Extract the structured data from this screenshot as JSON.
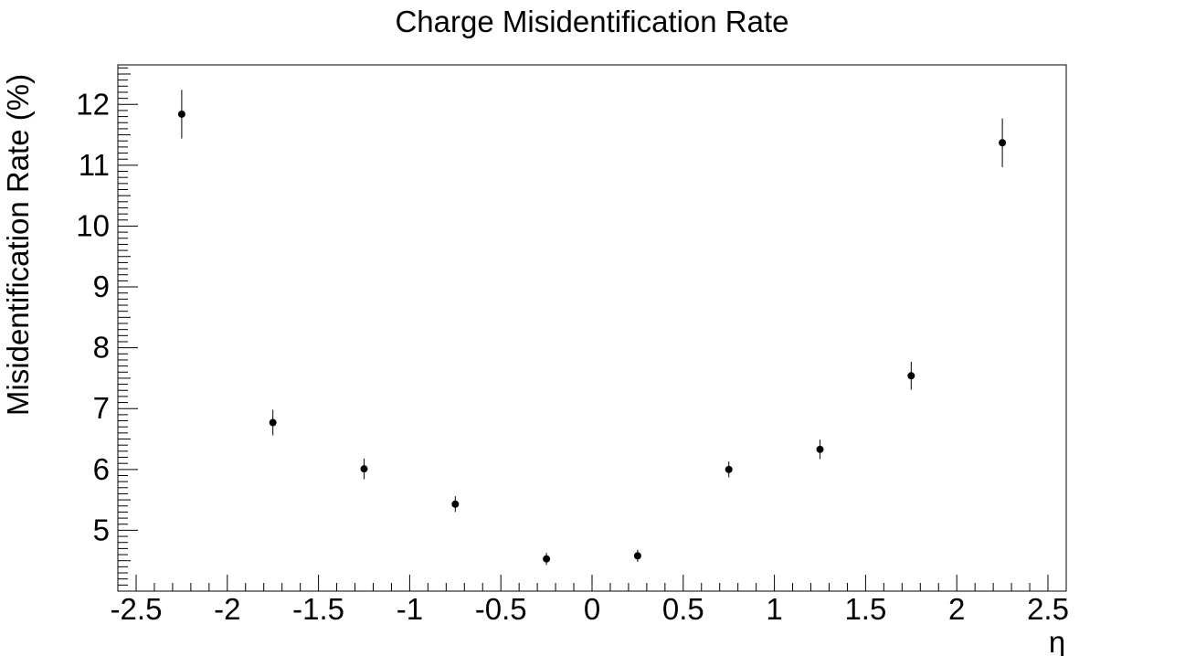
{
  "chart_data": {
    "type": "scatter",
    "title": "Charge Misidentification Rate",
    "xlabel": "η",
    "ylabel": "Misidentification Rate (%)",
    "xlim": [
      -2.5,
      2.5
    ],
    "ylim": [
      4.0,
      12.65
    ],
    "grid": false,
    "x_ticks": [
      "-2.5",
      "-2",
      "-1.5",
      "-1",
      "-0.5",
      "0",
      "0.5",
      "1",
      "1.5",
      "2",
      "2.5"
    ],
    "y_ticks": [
      "5",
      "6",
      "7",
      "8",
      "9",
      "10",
      "11",
      "12"
    ],
    "series": [
      {
        "marker": "circle",
        "color": "#000000",
        "points": [
          {
            "x": -2.25,
            "y": 11.84,
            "err": 0.4
          },
          {
            "x": -1.75,
            "y": 6.77,
            "err": 0.21
          },
          {
            "x": -1.25,
            "y": 6.01,
            "err": 0.17
          },
          {
            "x": -0.75,
            "y": 5.43,
            "err": 0.13
          },
          {
            "x": -0.25,
            "y": 4.53,
            "err": 0.1
          },
          {
            "x": 0.25,
            "y": 4.58,
            "err": 0.1
          },
          {
            "x": 0.75,
            "y": 6.0,
            "err": 0.13
          },
          {
            "x": 1.25,
            "y": 6.33,
            "err": 0.16
          },
          {
            "x": 1.75,
            "y": 7.54,
            "err": 0.23
          },
          {
            "x": 2.25,
            "y": 11.37,
            "err": 0.4
          }
        ]
      }
    ]
  }
}
